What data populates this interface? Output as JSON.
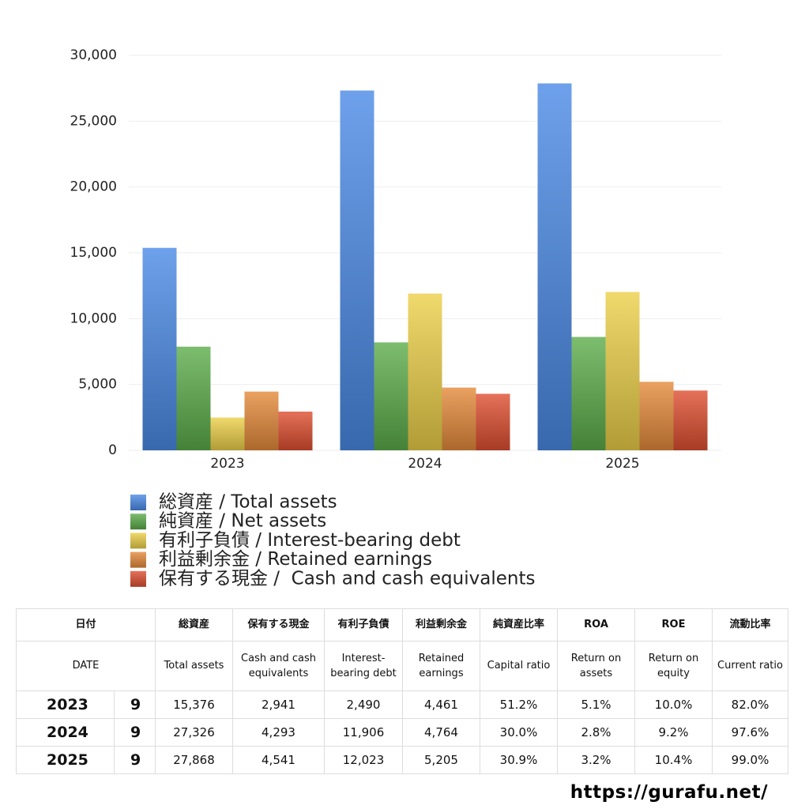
{
  "chart_data": {
    "type": "bar",
    "categories": [
      "2023",
      "2024",
      "2025"
    ],
    "series": [
      {
        "name": "総資産 / Total assets",
        "color": "#4a8ae6",
        "values": [
          15376,
          27326,
          27868
        ]
      },
      {
        "name": "純資産 / Net assets",
        "color": "#5cad4a",
        "values": [
          7872,
          8198,
          8611
        ]
      },
      {
        "name": "有利子負債 / Interest-bearing debt",
        "color": "#ecd048",
        "values": [
          2490,
          11906,
          12023
        ]
      },
      {
        "name": "利益剰余金 / Retained earnings",
        "color": "#e58a3a",
        "values": [
          4461,
          4764,
          5205
        ]
      },
      {
        "name": "保有する現金 /  Cash and cash equivalents",
        "color": "#de4e30",
        "values": [
          2941,
          4293,
          4541
        ]
      }
    ],
    "ylim": [
      0,
      30000
    ],
    "yticks": [
      0,
      {
        "value": 5000,
        "label": "5,000"
      },
      {
        "value": 10000,
        "label": "10,000"
      },
      {
        "value": 15000,
        "label": "15,000"
      },
      {
        "value": 20000,
        "label": "20,000"
      },
      {
        "value": 25000,
        "label": "25,000"
      },
      {
        "value": 30000,
        "label": "30,000"
      }
    ],
    "grid": true
  },
  "table": {
    "header_ja": [
      "日付",
      "総資産",
      "保有する現金",
      "有利子負債",
      "利益剰余金",
      "純資産比率",
      "ROA",
      "ROE",
      "流動比率"
    ],
    "header_en": [
      "DATE",
      "Total assets",
      "Cash and cash equivalents",
      "Interest-bearing debt",
      "Retained earnings",
      "Capital ratio",
      "Return on assets",
      "Return on equity",
      "Current ratio"
    ],
    "rows": [
      [
        "2023",
        "9",
        "15,376",
        "2,941",
        "2,490",
        "4,461",
        "51.2%",
        "5.1%",
        "10.0%",
        "82.0%"
      ],
      [
        "2024",
        "9",
        "27,326",
        "4,293",
        "11,906",
        "4,764",
        "30.0%",
        "2.8%",
        "9.2%",
        "97.6%"
      ],
      [
        "2025",
        "9",
        "27,868",
        "4,541",
        "12,023",
        "5,205",
        "30.9%",
        "3.2%",
        "10.4%",
        "99.0%"
      ]
    ]
  },
  "footer": {
    "url": "https://gurafu.net/"
  }
}
